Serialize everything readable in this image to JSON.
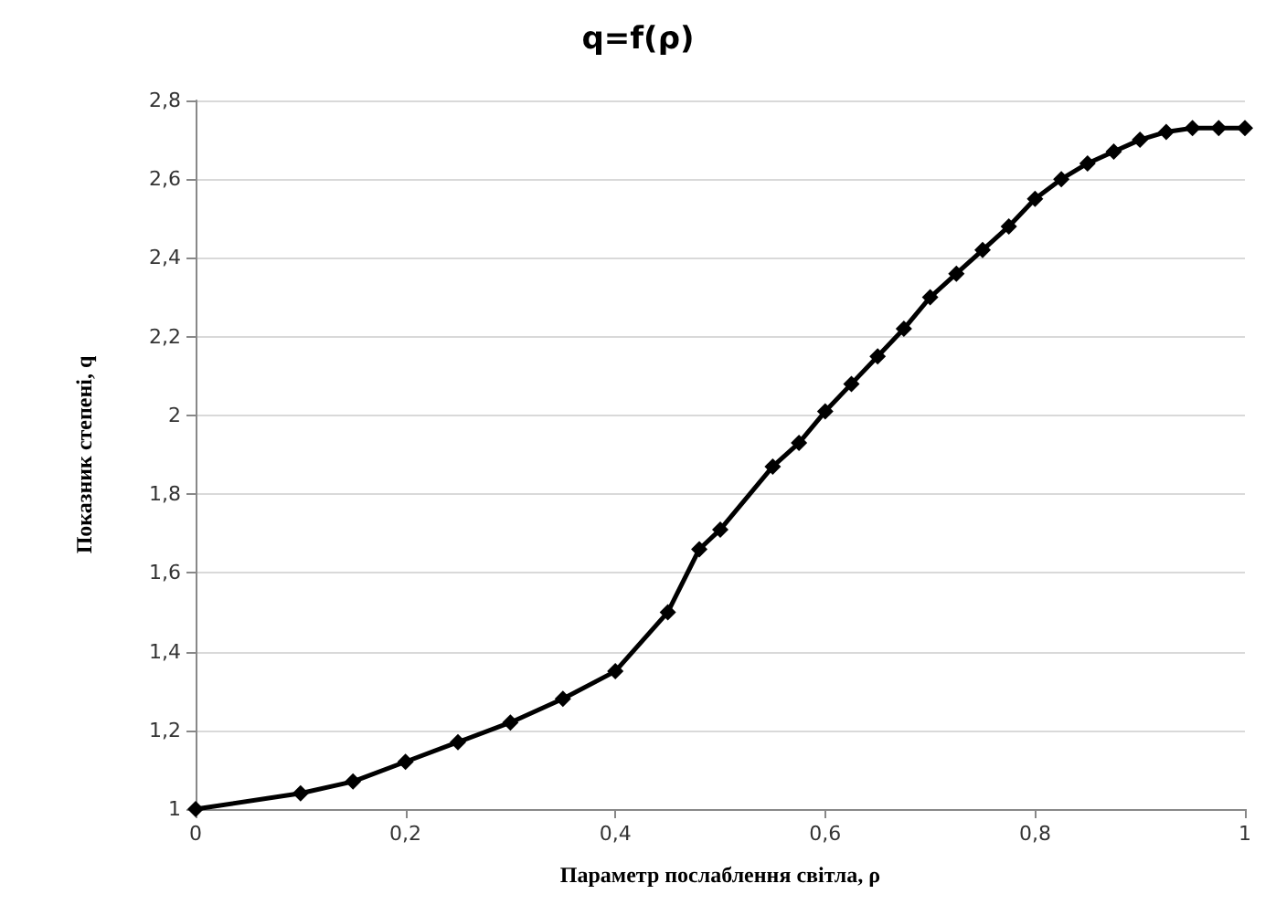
{
  "chart_data": {
    "type": "line",
    "title": "q=f(ρ)",
    "xlabel": "Параметр послаблення світла, ρ",
    "ylabel": "Показник степені, q",
    "x": [
      0,
      0.1,
      0.15,
      0.2,
      0.25,
      0.3,
      0.35,
      0.4,
      0.45,
      0.48,
      0.5,
      0.55,
      0.575,
      0.6,
      0.625,
      0.65,
      0.675,
      0.7,
      0.725,
      0.75,
      0.775,
      0.8,
      0.825,
      0.85,
      0.875,
      0.9,
      0.925,
      0.95,
      0.975,
      1
    ],
    "series": [
      {
        "color": "#000000",
        "values": [
          1,
          1.04,
          1.07,
          1.12,
          1.17,
          1.22,
          1.28,
          1.35,
          1.5,
          1.66,
          1.71,
          1.87,
          1.93,
          2.01,
          2.08,
          2.15,
          2.22,
          2.3,
          2.36,
          2.42,
          2.48,
          2.55,
          2.6,
          2.64,
          2.67,
          2.7,
          2.72,
          2.73,
          2.73,
          2.73
        ]
      }
    ],
    "xlim": [
      0,
      1
    ],
    "xticks": [
      0,
      {
        "value": 0.2,
        "label": "0,2"
      },
      {
        "value": 0.4,
        "label": "0,4"
      },
      {
        "value": 0.6,
        "label": "0,6"
      },
      {
        "value": 0.8,
        "label": "0,8"
      },
      1
    ],
    "ylim": [
      1,
      2.8
    ],
    "yticks": [
      1,
      {
        "value": 1.2,
        "label": "1,2"
      },
      {
        "value": 1.4,
        "label": "1,4"
      },
      {
        "value": 1.6,
        "label": "1,6"
      },
      {
        "value": 1.8,
        "label": "1,8"
      },
      2,
      {
        "value": 2.2,
        "label": "2,2"
      },
      {
        "value": 2.4,
        "label": "2,4"
      },
      {
        "value": 2.6,
        "label": "2,6"
      },
      {
        "value": 2.8,
        "label": "2,8"
      }
    ],
    "grid": "y",
    "marker": "diamond",
    "line_style": "solid"
  }
}
